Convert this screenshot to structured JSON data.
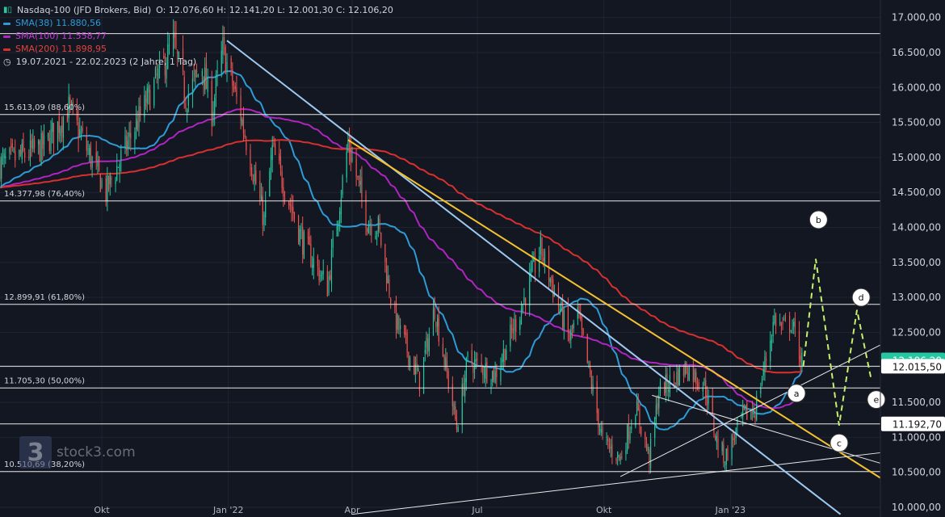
{
  "legend": {
    "symbol": "Nasdaq-100 (JFD Brokers, Bid)",
    "ohlc": "O: 12.076,60  H: 12.141,20  L: 12.001,30  C: 12.106,20",
    "sma38": "SMA(38)  11.880,56",
    "sma100": "SMA(100)  11.558,77",
    "sma200": "SMA(200)  11.898,95",
    "range": "19.07.2021 - 22.02.2023  (2 Jahre, 1 Tag)"
  },
  "watermark": "stock3.com",
  "colors": {
    "background": "#131722",
    "up": "#26c7a0",
    "down": "#ef5350",
    "sma38": "#2e9bd6",
    "sma100": "#b024c0",
    "sma200": "#d8302f",
    "fib": "#e8e8e8",
    "trend_blue": "#9ec9f0",
    "trend_yellow": "#f5c12e",
    "projection": "#c6f06b",
    "text": "#d1d4dc",
    "price_tag": "#26c7a0"
  },
  "chart_data": {
    "type": "candlestick",
    "title": "Nasdaq-100 (JFD Brokers, Bid)",
    "y_axis": {
      "side": "right",
      "ylim": [
        10000,
        17250
      ],
      "ticks": [
        "17.000,00",
        "16.500,00",
        "16.000,00",
        "15.500,00",
        "15.000,00",
        "14.500,00",
        "14.000,00",
        "13.500,00",
        "13.000,00",
        "12.500,00",
        "12.000,00",
        "11.500,00",
        "11.000,00",
        "10.500,00",
        "10.000,00"
      ],
      "tick_values": [
        17000,
        16500,
        16000,
        15500,
        15000,
        14500,
        14000,
        13500,
        13000,
        12500,
        12000,
        11500,
        11000,
        10500,
        10000
      ]
    },
    "x_axis": {
      "labels": [
        "Okt",
        "Jan '22",
        "Apr",
        "Jul",
        "Okt",
        "Jan '23"
      ],
      "dates": [
        "2021-10-01",
        "2022-01-01",
        "2022-04-01",
        "2022-07-01",
        "2022-10-01",
        "2023-01-01"
      ],
      "range": [
        "2021-07-19",
        "2023-04-20"
      ]
    },
    "price_levels": [
      {
        "label": "",
        "value": 16770
      },
      {
        "label": "15.613,09 (88,60%)",
        "value": 15613.09
      },
      {
        "label": "14.377,98 (76,40%)",
        "value": 14377.98
      },
      {
        "label": "12.899,91 (61,80%)",
        "value": 12899.91
      },
      {
        "label": "",
        "value": 12015.5
      },
      {
        "label": "11.705,30 (50,00%)",
        "value": 11705.3
      },
      {
        "label": "",
        "value": 11192.7
      },
      {
        "label": "10.510,69 (38,20%)",
        "value": 10510.69
      }
    ],
    "price_tags": [
      {
        "text": "12.106,20",
        "value": 12106.2,
        "style": "current"
      },
      {
        "text": "12.015,50",
        "value": 12015.5,
        "style": "level"
      },
      {
        "text": "11.192,70",
        "value": 11192.7,
        "style": "level"
      }
    ],
    "anchors": [
      {
        "date": "2021-07-19",
        "close": 14900
      },
      {
        "date": "2021-08-20",
        "close": 15150
      },
      {
        "date": "2021-09-07",
        "close": 15700
      },
      {
        "date": "2021-10-04",
        "close": 14500
      },
      {
        "date": "2021-10-22",
        "close": 15300
      },
      {
        "date": "2021-11-12",
        "close": 16200
      },
      {
        "date": "2021-11-22",
        "close": 16650
      },
      {
        "date": "2021-12-01",
        "close": 15850
      },
      {
        "date": "2021-12-13",
        "close": 16300
      },
      {
        "date": "2021-12-20",
        "close": 15650
      },
      {
        "date": "2021-12-28",
        "close": 16550
      },
      {
        "date": "2022-01-10",
        "close": 15600
      },
      {
        "date": "2022-01-27",
        "close": 14100
      },
      {
        "date": "2022-02-02",
        "close": 15100
      },
      {
        "date": "2022-02-24",
        "close": 13800
      },
      {
        "date": "2022-03-14",
        "close": 13150
      },
      {
        "date": "2022-03-29",
        "close": 15200
      },
      {
        "date": "2022-04-12",
        "close": 14100
      },
      {
        "date": "2022-04-20",
        "close": 14000
      },
      {
        "date": "2022-05-02",
        "close": 12700
      },
      {
        "date": "2022-05-20",
        "close": 11800
      },
      {
        "date": "2022-05-31",
        "close": 12850
      },
      {
        "date": "2022-06-16",
        "close": 11150
      },
      {
        "date": "2022-06-24",
        "close": 12100
      },
      {
        "date": "2022-07-14",
        "close": 11900
      },
      {
        "date": "2022-08-01",
        "close": 12800
      },
      {
        "date": "2022-08-16",
        "close": 13700
      },
      {
        "date": "2022-09-06",
        "close": 12400
      },
      {
        "date": "2022-09-12",
        "close": 12750
      },
      {
        "date": "2022-09-30",
        "close": 10950
      },
      {
        "date": "2022-10-13",
        "close": 10700
      },
      {
        "date": "2022-10-24",
        "close": 11450
      },
      {
        "date": "2022-11-03",
        "close": 10700
      },
      {
        "date": "2022-11-10",
        "close": 11650
      },
      {
        "date": "2022-11-30",
        "close": 12000
      },
      {
        "date": "2022-12-13",
        "close": 11750
      },
      {
        "date": "2022-12-22",
        "close": 10950
      },
      {
        "date": "2022-12-28",
        "close": 10700
      },
      {
        "date": "2023-01-10",
        "close": 11300
      },
      {
        "date": "2023-01-19",
        "close": 11400
      },
      {
        "date": "2023-02-02",
        "close": 12700
      },
      {
        "date": "2023-02-08",
        "close": 12550
      },
      {
        "date": "2023-02-14",
        "close": 12650
      },
      {
        "date": "2023-02-22",
        "close": 12100
      }
    ],
    "moving_averages": [
      {
        "name": "SMA(38)",
        "period": 38,
        "color": "#2e9bd6"
      },
      {
        "name": "SMA(100)",
        "period": 100,
        "color": "#b024c0"
      },
      {
        "name": "SMA(200)",
        "period": 200,
        "color": "#d8302f"
      }
    ],
    "trendlines": [
      {
        "color": "#9ec9f0",
        "from": {
          "date": "2021-12-31",
          "value": 16670
        },
        "to": {
          "date": "2023-03-22",
          "value": 9900
        }
      },
      {
        "color": "#f5c12e",
        "from": {
          "date": "2022-03-29",
          "value": 15250
        },
        "to": {
          "date": "2023-04-20",
          "value": 10420
        }
      },
      {
        "color": "#e8e8e8",
        "from": {
          "date": "2022-10-13",
          "value": 10440
        },
        "to": {
          "date": "2023-04-20",
          "value": 12320
        }
      },
      {
        "color": "#e8e8e8",
        "from": {
          "date": "2022-11-05",
          "value": 11600
        },
        "to": {
          "date": "2023-04-20",
          "value": 10630
        }
      },
      {
        "color": "#e8e8e8",
        "from": {
          "date": "2022-04-01",
          "value": 9900
        },
        "to": {
          "date": "2023-04-20",
          "value": 10780
        }
      }
    ],
    "projection": [
      {
        "date": "2023-02-23",
        "value": 12020
      },
      {
        "date": "2023-03-04",
        "value": 13550
      },
      {
        "date": "2023-03-21",
        "value": 11170
      },
      {
        "date": "2023-04-03",
        "value": 12820
      },
      {
        "date": "2023-04-13",
        "value": 11860
      }
    ],
    "waves": [
      {
        "label": "a",
        "date": "2023-02-18",
        "value": 11630
      },
      {
        "label": "b",
        "date": "2023-03-06",
        "value": 14110
      },
      {
        "label": "c",
        "date": "2023-03-21",
        "value": 10920
      },
      {
        "label": "d",
        "date": "2023-04-06",
        "value": 13000
      },
      {
        "label": "e",
        "date": "2023-04-17",
        "value": 11540
      }
    ]
  }
}
